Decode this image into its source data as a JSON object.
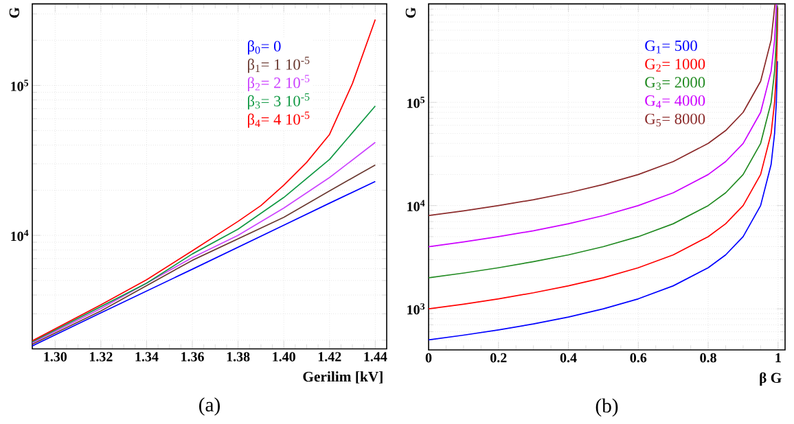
{
  "chart_data": [
    {
      "type": "line",
      "xlabel": "Gerilim [kV]",
      "ylabel": "G",
      "log": "y",
      "grid": true,
      "legend": "top right",
      "xlim": [
        1.29,
        1.445
      ],
      "ylim": [
        1750,
        350000
      ],
      "xticks": [
        {
          "value": 1.3,
          "label": "1.30"
        },
        {
          "value": 1.32,
          "label": "1.32"
        },
        {
          "value": 1.34,
          "label": "1.34"
        },
        {
          "value": 1.36,
          "label": "1.36"
        },
        {
          "value": 1.38,
          "label": "1.38"
        },
        {
          "value": 1.4,
          "label": "1.40"
        },
        {
          "value": 1.42,
          "label": "1.42"
        },
        {
          "value": 1.44,
          "label": "1.44"
        }
      ],
      "yticks": [
        {
          "value": 2000,
          "label": null
        },
        {
          "value": 3000,
          "label": null
        },
        {
          "value": 4000,
          "label": null
        },
        {
          "value": 5000,
          "label": null
        },
        {
          "value": 6000,
          "label": null
        },
        {
          "value": 7000,
          "label": null
        },
        {
          "value": 8000,
          "label": null
        },
        {
          "value": 9000,
          "label": null
        },
        {
          "value": 10000,
          "label": "10$^{4}$"
        },
        {
          "value": 20000,
          "label": null
        },
        {
          "value": 30000,
          "label": null
        },
        {
          "value": 40000,
          "label": null
        },
        {
          "value": 50000,
          "label": null
        },
        {
          "value": 60000,
          "label": null
        },
        {
          "value": 70000,
          "label": null
        },
        {
          "value": 80000,
          "label": null
        },
        {
          "value": 90000,
          "label": null
        },
        {
          "value": 100000,
          "label": "10$^{5}$"
        },
        {
          "value": 200000,
          "label": null
        },
        {
          "value": 300000,
          "label": null
        }
      ],
      "annotations": [
        "(a)"
      ],
      "series": [
        {
          "name": "β$_{0}$= 0",
          "color": "#0000ff",
          "x": [
            1.29,
            1.32,
            1.36,
            1.4,
            1.42,
            1.44
          ],
          "values": [
            1830,
            3040,
            5950,
            11700,
            16400,
            22900
          ]
        },
        {
          "name": "β$_{1}$= 1 10$^{-5}$",
          "color": "#6b3a32",
          "x": [
            1.29,
            1.32,
            1.36,
            1.4,
            1.42,
            1.44
          ],
          "values": [
            1880,
            3130,
            6820,
            13200,
            19800,
            29500
          ]
        },
        {
          "name": "β$_{2}$= 2 10$^{-5}$",
          "color": "#cc44ff",
          "x": [
            1.29,
            1.32,
            1.36,
            1.38,
            1.4,
            1.42,
            1.44
          ],
          "values": [
            1920,
            3250,
            7100,
            10000,
            15200,
            24300,
            41700
          ]
        },
        {
          "name": "β$_{3}$= 3 10$^{-5}$",
          "color": "#119944",
          "x": [
            1.29,
            1.32,
            1.34,
            1.36,
            1.38,
            1.4,
            1.42,
            1.44
          ],
          "values": [
            1950,
            3350,
            4800,
            7520,
            11000,
            17900,
            32100,
            72900
          ]
        },
        {
          "name": "β$_{4}$= 4 10$^{-5}$",
          "color": "#ff0000",
          "x": [
            1.29,
            1.32,
            1.34,
            1.36,
            1.38,
            1.39,
            1.4,
            1.41,
            1.42,
            1.43,
            1.44
          ],
          "values": [
            1980,
            3440,
            5060,
            7890,
            12400,
            15800,
            21600,
            30700,
            47100,
            102800,
            275000
          ]
        }
      ]
    },
    {
      "type": "line",
      "xlabel": "β G",
      "ylabel": "G",
      "log": "y",
      "grid": true,
      "legend": "top right",
      "xlim": [
        0,
        1.02
      ],
      "ylim": [
        400,
        900000
      ],
      "xticks": [
        0,
        0.2,
        0.4,
        0.6,
        0.8,
        1
      ],
      "yticks": [
        {
          "value": 500,
          "label": null
        },
        {
          "value": 600,
          "label": null
        },
        {
          "value": 700,
          "label": null
        },
        {
          "value": 800,
          "label": null
        },
        {
          "value": 900,
          "label": null
        },
        {
          "value": 1000,
          "label": "10$^{3}$"
        },
        {
          "value": 2000,
          "label": null
        },
        {
          "value": 3000,
          "label": null
        },
        {
          "value": 4000,
          "label": null
        },
        {
          "value": 5000,
          "label": null
        },
        {
          "value": 6000,
          "label": null
        },
        {
          "value": 7000,
          "label": null
        },
        {
          "value": 8000,
          "label": null
        },
        {
          "value": 9000,
          "label": null
        },
        {
          "value": 10000,
          "label": "10$^{4}$"
        },
        {
          "value": 20000,
          "label": null
        },
        {
          "value": 30000,
          "label": null
        },
        {
          "value": 40000,
          "label": null
        },
        {
          "value": 50000,
          "label": null
        },
        {
          "value": 60000,
          "label": null
        },
        {
          "value": 70000,
          "label": null
        },
        {
          "value": 80000,
          "label": null
        },
        {
          "value": 90000,
          "label": null
        },
        {
          "value": 100000,
          "label": "10$^{5}$"
        },
        {
          "value": 200000,
          "label": null
        },
        {
          "value": 300000,
          "label": null
        },
        {
          "value": 400000,
          "label": null
        },
        {
          "value": 500000,
          "label": null
        },
        {
          "value": 600000,
          "label": null
        },
        {
          "value": 700000,
          "label": null
        },
        {
          "value": 800000,
          "label": null
        },
        {
          "value": 900000,
          "label": null
        }
      ],
      "annotations": [
        "(b)"
      ],
      "series": [
        {
          "name": "G$_{1}$= 500",
          "color": "#0000ff",
          "x": [
            0,
            0.1,
            0.2,
            0.3,
            0.4,
            0.5,
            0.6,
            0.7,
            0.8,
            0.85,
            0.9,
            0.95,
            0.98,
            0.99,
            0.995,
            0.998
          ],
          "values": [
            500,
            556,
            625,
            714,
            833,
            1000,
            1250,
            1670,
            2500,
            3330,
            5000,
            10000,
            25000,
            50000,
            100000,
            250000
          ]
        },
        {
          "name": "G$_{2}$= 1000",
          "color": "#ff0000",
          "x": [
            0,
            0.1,
            0.2,
            0.3,
            0.4,
            0.5,
            0.6,
            0.7,
            0.8,
            0.85,
            0.9,
            0.95,
            0.98,
            0.99,
            0.995,
            0.998,
            0.9988
          ],
          "values": [
            1000,
            1110,
            1250,
            1430,
            1670,
            2000,
            2500,
            3330,
            5000,
            6670,
            10000,
            20000,
            50000,
            100000,
            200000,
            500000,
            833000
          ]
        },
        {
          "name": "G$_{3}$= 2000",
          "color": "#228b22",
          "x": [
            0,
            0.1,
            0.2,
            0.3,
            0.4,
            0.5,
            0.6,
            0.7,
            0.8,
            0.85,
            0.9,
            0.95,
            0.98,
            0.99,
            0.995,
            0.9977
          ],
          "values": [
            2000,
            2220,
            2500,
            2860,
            3330,
            4000,
            5000,
            6670,
            10000,
            13300,
            20000,
            40000,
            100000,
            200000,
            400000,
            870000
          ]
        },
        {
          "name": "G$_{4}$= 4000",
          "color": "#cc00ff",
          "x": [
            0,
            0.1,
            0.2,
            0.3,
            0.4,
            0.5,
            0.6,
            0.7,
            0.8,
            0.85,
            0.9,
            0.95,
            0.98,
            0.99,
            0.9955
          ],
          "values": [
            4000,
            4440,
            5000,
            5710,
            6670,
            8000,
            10000,
            13300,
            20000,
            26700,
            40000,
            80000,
            200000,
            400000,
            889000
          ]
        },
        {
          "name": "G$_{5}$= 8000",
          "color": "#8b2a2a",
          "x": [
            0,
            0.1,
            0.2,
            0.3,
            0.4,
            0.5,
            0.6,
            0.7,
            0.8,
            0.85,
            0.9,
            0.95,
            0.98,
            0.991
          ],
          "values": [
            8000,
            8890,
            10000,
            11400,
            13300,
            16000,
            20000,
            26700,
            40000,
            53300,
            80000,
            160000,
            400000,
            889000
          ]
        }
      ]
    }
  ]
}
